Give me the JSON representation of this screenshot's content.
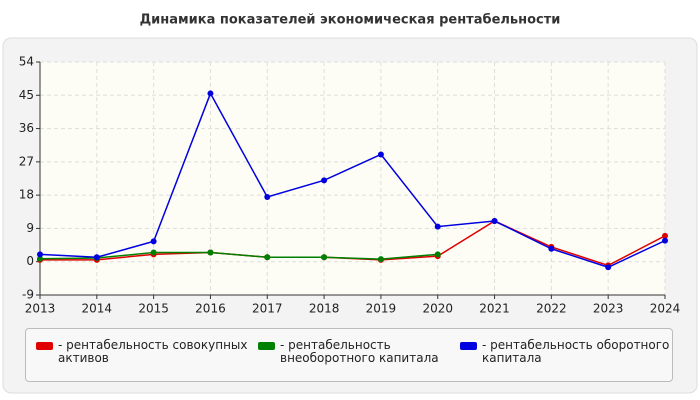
{
  "chart_data": {
    "type": "line",
    "title": "Динамика показателей экономическая рентабельности",
    "x": [
      2013,
      2014,
      2015,
      2016,
      2017,
      2018,
      2019,
      2020,
      2021,
      2022,
      2023,
      2024
    ],
    "xlim": [
      2013,
      2024
    ],
    "xticks": [
      2013,
      2014,
      2015,
      2016,
      2017,
      2018,
      2019,
      2020,
      2021,
      2022,
      2023,
      2024
    ],
    "ylim": [
      -9,
      54
    ],
    "yticks": [
      -9,
      0,
      9,
      18,
      27,
      36,
      45,
      54
    ],
    "grid": true,
    "series": [
      {
        "name": "- рентабельность совокупных активов",
        "color": "#e00000",
        "values": [
          0.5,
          0.5,
          2,
          2.5,
          1.2,
          1.2,
          0.5,
          1.5,
          11,
          4,
          -1,
          7
        ]
      },
      {
        "name": "- рентабельность внеоборотного капитала",
        "color": "#008000",
        "values": [
          0.8,
          1,
          2.5,
          2.5,
          1.2,
          1.2,
          0.7,
          2,
          null,
          null,
          null,
          null
        ]
      },
      {
        "name": "- рентабельность оборотного капитала",
        "color": "#0000e0",
        "values": [
          2,
          1.2,
          5.5,
          45.5,
          17.5,
          22,
          29,
          9.5,
          11,
          3.5,
          -1.5,
          5.7
        ]
      }
    ]
  }
}
